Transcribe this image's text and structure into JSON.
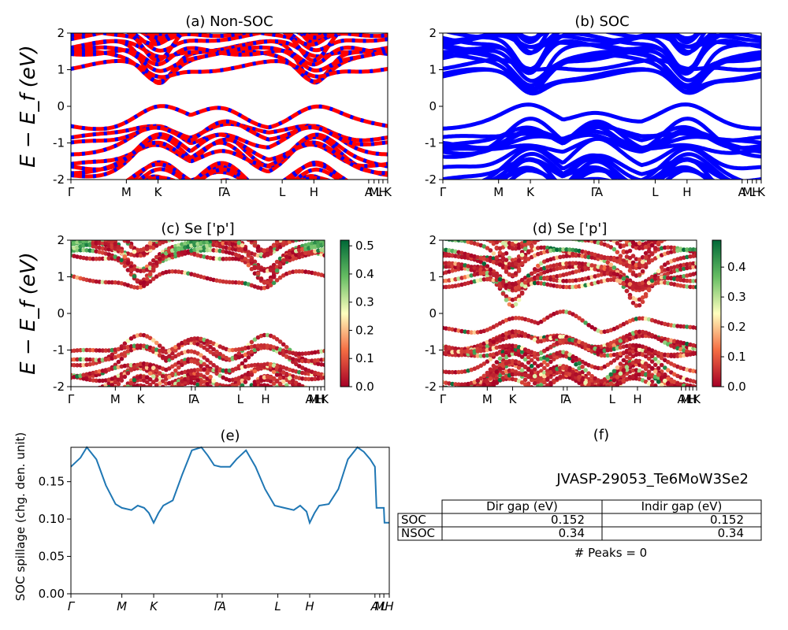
{
  "figure": {
    "ylabel_energy": "E − E_f (eV)",
    "ylabel_spillage": "SOC spillage (chg. den. unit)",
    "kpath_labels": [
      "Γ",
      "M",
      "K",
      "Γ",
      "A",
      "L",
      "H",
      "A",
      "M",
      "L",
      "H",
      "K"
    ]
  },
  "chart_data": [
    {
      "id": "a",
      "type": "line",
      "title": "(a) Non-SOC",
      "ylim": [
        -2,
        2
      ],
      "yticks": [
        -2,
        -1,
        0,
        1,
        2
      ],
      "xticks": [
        {
          "pos": 0.0,
          "label": "Γ"
        },
        {
          "pos": 0.175,
          "label": "M"
        },
        {
          "pos": 0.275,
          "label": "K"
        },
        {
          "pos": 0.475,
          "label": "Γ"
        },
        {
          "pos": 0.49,
          "label": "A"
        },
        {
          "pos": 0.667,
          "label": "L"
        },
        {
          "pos": 0.767,
          "label": "H"
        },
        {
          "pos": 0.94,
          "label": "A"
        },
        {
          "pos": 0.957,
          "label": "M"
        },
        {
          "pos": 0.972,
          "label": "L"
        },
        {
          "pos": 0.985,
          "label": "H"
        },
        {
          "pos": 1.0,
          "label": "K"
        }
      ],
      "colors": [
        "#ff0000",
        "#0000ff"
      ]
    },
    {
      "id": "b",
      "type": "line",
      "title": "(b) SOC",
      "ylim": [
        -2,
        2
      ],
      "yticks": [
        -2,
        -1,
        0,
        1,
        2
      ],
      "xticks": [
        {
          "pos": 0.0,
          "label": "Γ"
        },
        {
          "pos": 0.175,
          "label": "M"
        },
        {
          "pos": 0.275,
          "label": "K"
        },
        {
          "pos": 0.475,
          "label": "Γ"
        },
        {
          "pos": 0.49,
          "label": "A"
        },
        {
          "pos": 0.667,
          "label": "L"
        },
        {
          "pos": 0.767,
          "label": "H"
        },
        {
          "pos": 0.94,
          "label": "A"
        },
        {
          "pos": 0.957,
          "label": "M"
        },
        {
          "pos": 0.972,
          "label": "L"
        },
        {
          "pos": 0.985,
          "label": "H"
        },
        {
          "pos": 1.0,
          "label": "K"
        }
      ],
      "colors": [
        "#0000ff"
      ]
    },
    {
      "id": "c",
      "type": "scatter",
      "title": "(c)  Se ['p']",
      "ylim": [
        -2,
        2
      ],
      "yticks": [
        -2,
        -1,
        0,
        1,
        2
      ],
      "xticks": [
        {
          "pos": 0.0,
          "label": "Γ"
        },
        {
          "pos": 0.175,
          "label": "M"
        },
        {
          "pos": 0.275,
          "label": "K"
        },
        {
          "pos": 0.475,
          "label": "Γ"
        },
        {
          "pos": 0.49,
          "label": "A"
        },
        {
          "pos": 0.667,
          "label": "L"
        },
        {
          "pos": 0.767,
          "label": "H"
        },
        {
          "pos": 0.94,
          "label": "A"
        },
        {
          "pos": 0.957,
          "label": "M"
        },
        {
          "pos": 0.972,
          "label": "L"
        },
        {
          "pos": 0.985,
          "label": "H"
        },
        {
          "pos": 1.0,
          "label": "K"
        }
      ],
      "colorbar": {
        "min": 0.0,
        "max": 0.52,
        "ticks": [
          "0.0",
          "0.1",
          "0.2",
          "0.3",
          "0.4",
          "0.5"
        ],
        "tick_values": [
          0.0,
          0.1,
          0.2,
          0.3,
          0.4,
          0.5
        ],
        "colormap": "RdYlGn"
      }
    },
    {
      "id": "d",
      "type": "scatter",
      "title": "(d) Se ['p']",
      "ylim": [
        -2,
        2
      ],
      "yticks": [
        -2,
        -1,
        0,
        1,
        2
      ],
      "xticks": [
        {
          "pos": 0.0,
          "label": "Γ"
        },
        {
          "pos": 0.175,
          "label": "M"
        },
        {
          "pos": 0.275,
          "label": "K"
        },
        {
          "pos": 0.475,
          "label": "Γ"
        },
        {
          "pos": 0.49,
          "label": "A"
        },
        {
          "pos": 0.667,
          "label": "L"
        },
        {
          "pos": 0.767,
          "label": "H"
        },
        {
          "pos": 0.94,
          "label": "A"
        },
        {
          "pos": 0.957,
          "label": "M"
        },
        {
          "pos": 0.972,
          "label": "L"
        },
        {
          "pos": 0.985,
          "label": "H"
        },
        {
          "pos": 1.0,
          "label": "K"
        }
      ],
      "colorbar": {
        "min": 0.0,
        "max": 0.49,
        "ticks": [
          "0.0",
          "0.1",
          "0.2",
          "0.3",
          "0.4"
        ],
        "tick_values": [
          0.0,
          0.1,
          0.2,
          0.3,
          0.4
        ],
        "colormap": "RdYlGn"
      }
    },
    {
      "id": "e",
      "type": "line",
      "title": "(e)",
      "ylabel": "SOC spillage (chg. den. unit)",
      "ylim": [
        0,
        0.196
      ],
      "yticks": [
        0.0,
        0.05,
        0.1,
        0.15
      ],
      "ytick_labels": [
        "0.00",
        "0.05",
        "0.10",
        "0.15"
      ],
      "xticks": [
        {
          "pos": 0.0,
          "label": "Γ"
        },
        {
          "pos": 0.16,
          "label": "M"
        },
        {
          "pos": 0.26,
          "label": "K"
        },
        {
          "pos": 0.46,
          "label": "Γ"
        },
        {
          "pos": 0.475,
          "label": "A"
        },
        {
          "pos": 0.65,
          "label": "L"
        },
        {
          "pos": 0.75,
          "label": "H"
        },
        {
          "pos": 0.955,
          "label": "A"
        },
        {
          "pos": 0.97,
          "label": "M"
        },
        {
          "pos": 0.983,
          "label": "L"
        },
        {
          "pos": 1.0,
          "label": "H"
        }
      ],
      "color": "#1f77b4",
      "x": [
        0.0,
        0.03,
        0.05,
        0.08,
        0.11,
        0.14,
        0.16,
        0.19,
        0.21,
        0.23,
        0.245,
        0.26,
        0.275,
        0.29,
        0.32,
        0.35,
        0.38,
        0.41,
        0.43,
        0.45,
        0.47,
        0.5,
        0.52,
        0.55,
        0.58,
        0.61,
        0.64,
        0.67,
        0.7,
        0.72,
        0.74,
        0.75,
        0.765,
        0.78,
        0.81,
        0.84,
        0.87,
        0.9,
        0.92,
        0.94,
        0.955,
        0.96,
        0.983,
        0.985,
        1.0
      ],
      "y": [
        0.17,
        0.182,
        0.196,
        0.18,
        0.145,
        0.12,
        0.115,
        0.112,
        0.118,
        0.115,
        0.108,
        0.095,
        0.108,
        0.118,
        0.125,
        0.16,
        0.192,
        0.196,
        0.185,
        0.172,
        0.17,
        0.17,
        0.18,
        0.192,
        0.17,
        0.14,
        0.118,
        0.115,
        0.112,
        0.118,
        0.11,
        0.095,
        0.108,
        0.118,
        0.12,
        0.14,
        0.18,
        0.196,
        0.19,
        0.18,
        0.17,
        0.115,
        0.115,
        0.095,
        0.095
      ]
    },
    {
      "id": "f",
      "type": "table",
      "title": "(f)",
      "material": "JVASP-29053_Te6MoW3Se2",
      "columns": [
        "Dir gap (eV)",
        "Indir gap (eV)"
      ],
      "rows": [
        {
          "label": "SOC",
          "values": [
            "0.152",
            "0.152"
          ]
        },
        {
          "label": "NSOC",
          "values": [
            "0.34",
            "0.34"
          ]
        }
      ],
      "footer": "# Peaks = 0"
    }
  ]
}
